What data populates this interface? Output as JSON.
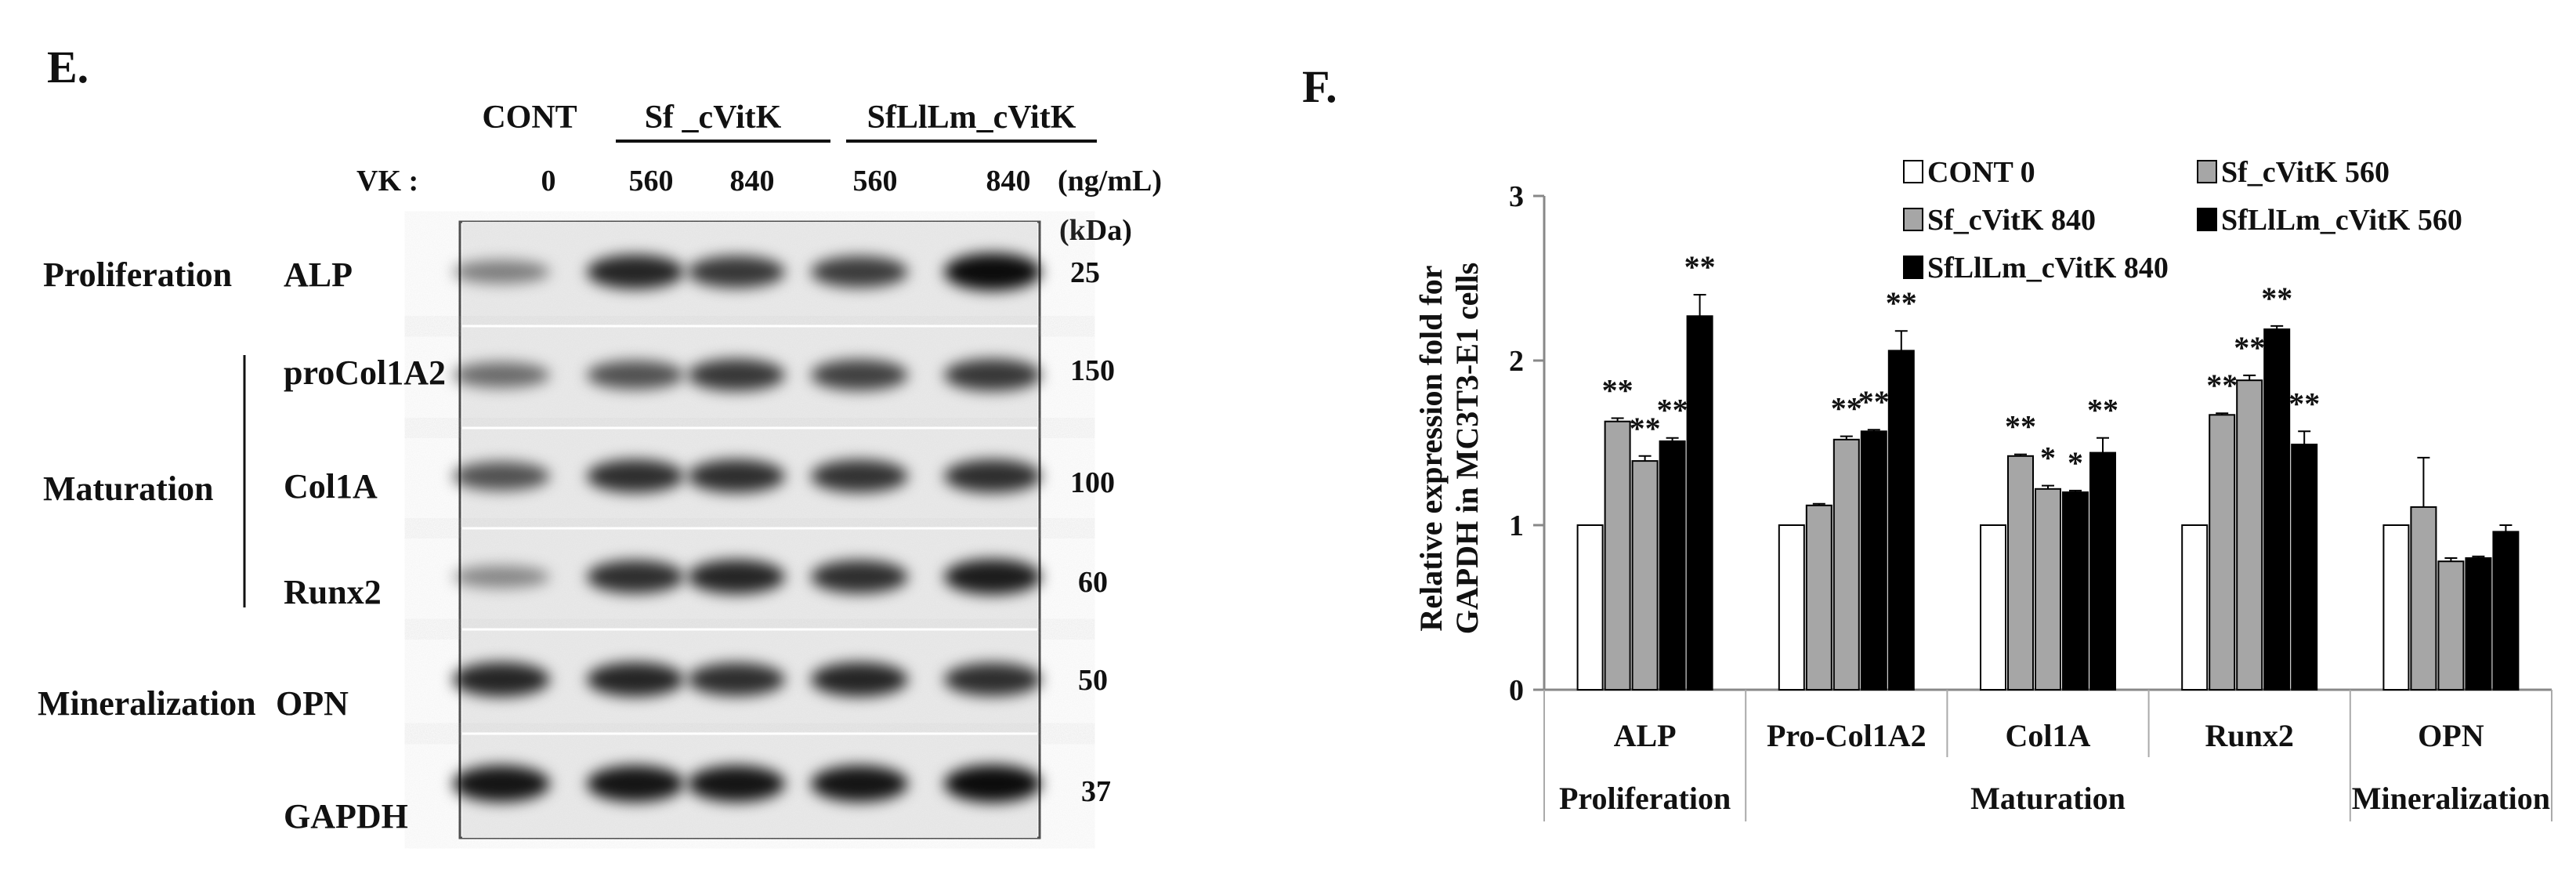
{
  "panel_e": {
    "label": "E.",
    "groups": [
      "CONT",
      "Sf _cVitK",
      "SfLlLm_cVitK"
    ],
    "vk_label": "VK :",
    "doses": [
      "0",
      "560",
      "840",
      "560",
      "840"
    ],
    "unit": "(ng/mL)",
    "kda_label": "(kDa)",
    "categories": [
      "Proliferation",
      "Maturation",
      "Mineralization"
    ],
    "rows": [
      {
        "protein": "ALP",
        "kda": "25",
        "band": [
          0.35,
          0.85,
          0.75,
          0.72,
          1.0
        ]
      },
      {
        "protein": "proCol1A2",
        "kda": "150",
        "band": [
          0.45,
          0.6,
          0.75,
          0.7,
          0.75
        ]
      },
      {
        "protein": "Col1A",
        "kda": "100",
        "band": [
          0.6,
          0.8,
          0.8,
          0.78,
          0.8
        ]
      },
      {
        "protein": "Runx2",
        "kda": "60",
        "band": [
          0.3,
          0.8,
          0.85,
          0.8,
          0.9
        ]
      },
      {
        "protein": "OPN",
        "kda": "50",
        "band": [
          0.85,
          0.85,
          0.8,
          0.85,
          0.8
        ]
      },
      {
        "protein": "GAPDH",
        "kda": "37",
        "band": [
          0.95,
          0.95,
          0.95,
          0.95,
          1.0
        ]
      }
    ]
  },
  "chart_data": {
    "type": "bar",
    "panel_label": "F.",
    "ylabel_lines": [
      "Relative expression fold for",
      "GAPDH in MC3T3-E1 cells"
    ],
    "ylim": [
      0,
      3
    ],
    "yticks": [
      "0",
      "1",
      "2",
      "3"
    ],
    "categories": [
      "ALP",
      "Pro-Col1A2",
      "Col1A",
      "Runx2",
      "OPN"
    ],
    "category_groups": [
      {
        "label": "Proliferation",
        "span": [
          0,
          0
        ]
      },
      {
        "label": "Maturation",
        "span": [
          1,
          3
        ]
      },
      {
        "label": "Mineralization",
        "span": [
          4,
          4
        ]
      }
    ],
    "legend_position": "top-right",
    "series": [
      {
        "name": "CONT 0",
        "color": "#ffffff",
        "values": [
          1.0,
          1.0,
          1.0,
          1.0,
          1.0
        ],
        "errors": [
          0,
          0,
          0,
          0,
          0
        ],
        "sig": [
          "",
          "",
          "",
          "",
          ""
        ]
      },
      {
        "name": "Sf_cVitK 560",
        "color": "#a6a6a6",
        "values": [
          1.63,
          1.12,
          1.42,
          1.67,
          1.11
        ],
        "errors": [
          0.02,
          0.01,
          0.01,
          0.01,
          0.3
        ],
        "sig": [
          "**",
          "",
          "**",
          "**",
          ""
        ]
      },
      {
        "name": "Sf_cVitK 840",
        "color": "#a6a6a6",
        "values": [
          1.39,
          1.52,
          1.22,
          1.88,
          0.78
        ],
        "errors": [
          0.03,
          0.02,
          0.02,
          0.03,
          0.02
        ],
        "sig": [
          "**",
          "**",
          "*",
          "**",
          ""
        ]
      },
      {
        "name": "SfLlLm_cVitK 560",
        "color": "#000000",
        "values": [
          1.51,
          1.57,
          1.2,
          2.19,
          0.8
        ],
        "errors": [
          0.02,
          0.01,
          0.01,
          0.02,
          0.01
        ],
        "sig": [
          "**",
          "**",
          "*",
          "**",
          ""
        ]
      },
      {
        "name": "SfLlLm_cVitK 840",
        "color": "#000000",
        "values": [
          2.27,
          2.06,
          1.44,
          1.49,
          0.96
        ],
        "errors": [
          0.13,
          0.12,
          0.09,
          0.08,
          0.04
        ],
        "sig": [
          "**",
          "**",
          "**",
          "**",
          ""
        ]
      }
    ]
  }
}
